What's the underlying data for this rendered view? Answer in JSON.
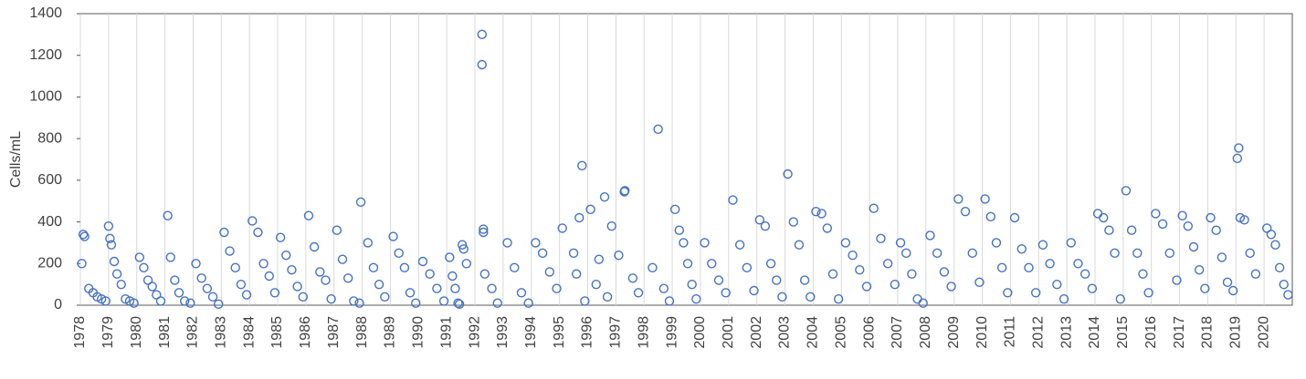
{
  "chart_data": {
    "type": "scatter",
    "ylabel": "Cells/mL",
    "xlim": [
      1978,
      2021
    ],
    "ylim": [
      0,
      1400
    ],
    "yticks": [
      0,
      200,
      400,
      600,
      800,
      1000,
      1200,
      1400
    ],
    "xticks": [
      1978,
      1979,
      1980,
      1981,
      1982,
      1983,
      1984,
      1985,
      1986,
      1987,
      1988,
      1989,
      1990,
      1991,
      1992,
      1993,
      1994,
      1995,
      1996,
      1997,
      1998,
      1999,
      2000,
      2001,
      2002,
      2003,
      2004,
      2005,
      2006,
      2007,
      2008,
      2009,
      2010,
      2011,
      2012,
      2013,
      2014,
      2015,
      2016,
      2017,
      2018,
      2019,
      2020
    ],
    "grid": true,
    "x": [
      1978.05,
      1978.1,
      1978.15,
      1978.3,
      1978.45,
      1978.6,
      1978.75,
      1978.9,
      1979.0,
      1979.05,
      1979.1,
      1979.2,
      1979.3,
      1979.45,
      1979.6,
      1979.75,
      1979.9,
      1980.1,
      1980.25,
      1980.4,
      1980.55,
      1980.7,
      1980.85,
      1981.1,
      1981.2,
      1981.35,
      1981.5,
      1981.7,
      1981.9,
      1982.1,
      1982.3,
      1982.5,
      1982.7,
      1982.9,
      1983.1,
      1983.3,
      1983.5,
      1983.7,
      1983.9,
      1984.1,
      1984.3,
      1984.5,
      1984.7,
      1984.9,
      1985.1,
      1985.3,
      1985.5,
      1985.7,
      1985.9,
      1986.1,
      1986.3,
      1986.5,
      1986.7,
      1986.9,
      1987.1,
      1987.3,
      1987.5,
      1987.7,
      1987.9,
      1987.95,
      1988.2,
      1988.4,
      1988.6,
      1988.8,
      1989.1,
      1989.3,
      1989.5,
      1989.7,
      1989.9,
      1990.15,
      1990.4,
      1990.65,
      1990.9,
      1991.1,
      1991.2,
      1991.3,
      1991.4,
      1991.45,
      1991.55,
      1991.6,
      1991.7,
      1992.25,
      1992.25,
      1992.3,
      1992.3,
      1992.35,
      1992.6,
      1992.8,
      1993.15,
      1993.4,
      1993.65,
      1993.9,
      1994.15,
      1994.4,
      1994.65,
      1994.9,
      1995.1,
      1995.7,
      1995.8,
      1995.5,
      1995.6,
      1995.9,
      1996.1,
      1996.6,
      1996.85,
      1996.4,
      1996.3,
      1996.7,
      1997.3,
      1997.32,
      1997.1,
      1997.6,
      1997.8,
      1998.5,
      1998.3,
      1998.7,
      1998.9,
      1999.1,
      1999.25,
      1999.4,
      1999.55,
      1999.7,
      1999.85,
      2000.15,
      2000.4,
      2000.65,
      2000.9,
      2001.15,
      2001.4,
      2001.65,
      2001.9,
      2002.1,
      2002.3,
      2002.5,
      2002.7,
      2002.9,
      2003.1,
      2003.3,
      2003.5,
      2003.7,
      2003.9,
      2004.1,
      2004.3,
      2004.5,
      2004.7,
      2004.9,
      2005.15,
      2005.4,
      2005.65,
      2005.9,
      2006.15,
      2006.4,
      2006.65,
      2006.9,
      2007.1,
      2007.3,
      2007.5,
      2007.7,
      2007.9,
      2008.15,
      2008.4,
      2008.65,
      2008.9,
      2009.15,
      2009.4,
      2009.65,
      2009.9,
      2010.1,
      2010.3,
      2010.5,
      2010.7,
      2010.9,
      2011.15,
      2011.4,
      2011.65,
      2011.9,
      2012.15,
      2012.4,
      2012.65,
      2012.9,
      2013.15,
      2013.4,
      2013.65,
      2013.9,
      2014.1,
      2014.3,
      2014.5,
      2014.7,
      2014.9,
      2015.1,
      2015.3,
      2015.5,
      2015.7,
      2015.9,
      2016.15,
      2016.4,
      2016.65,
      2016.9,
      2017.1,
      2017.3,
      2017.5,
      2017.7,
      2017.9,
      2018.1,
      2018.3,
      2018.5,
      2018.7,
      2018.9,
      2019.05,
      2019.1,
      2019.15,
      2019.3,
      2019.5,
      2019.7,
      2020.1,
      2020.25,
      2020.4,
      2020.55,
      2020.7,
      2020.85
    ],
    "series": [
      {
        "color": "#4472c4",
        "values": [
          200,
          340,
          330,
          80,
          60,
          40,
          30,
          20,
          380,
          320,
          290,
          210,
          150,
          100,
          30,
          20,
          10,
          230,
          180,
          120,
          90,
          50,
          20,
          430,
          230,
          120,
          60,
          20,
          10,
          200,
          130,
          80,
          40,
          5,
          350,
          260,
          180,
          100,
          50,
          405,
          350,
          200,
          140,
          60,
          325,
          240,
          170,
          90,
          40,
          430,
          280,
          160,
          120,
          30,
          360,
          220,
          130,
          20,
          10,
          495,
          300,
          180,
          100,
          40,
          330,
          250,
          180,
          60,
          10,
          210,
          150,
          80,
          20,
          230,
          140,
          80,
          10,
          5,
          290,
          270,
          200,
          1300,
          1155,
          365,
          350,
          150,
          80,
          10,
          300,
          180,
          60,
          10,
          300,
          250,
          160,
          80,
          370,
          420,
          670,
          250,
          150,
          20,
          460,
          520,
          380,
          220,
          100,
          40,
          545,
          550,
          240,
          130,
          60,
          845,
          180,
          80,
          20,
          460,
          360,
          300,
          200,
          100,
          30,
          300,
          200,
          120,
          60,
          505,
          290,
          180,
          70,
          410,
          380,
          200,
          120,
          40,
          630,
          400,
          290,
          120,
          40,
          450,
          440,
          370,
          150,
          30,
          300,
          240,
          170,
          90,
          465,
          320,
          200,
          100,
          300,
          250,
          150,
          30,
          10,
          335,
          250,
          160,
          90,
          510,
          450,
          250,
          110,
          510,
          425,
          300,
          180,
          60,
          420,
          270,
          180,
          60,
          290,
          200,
          100,
          30,
          300,
          200,
          150,
          80,
          440,
          420,
          360,
          250,
          30,
          550,
          360,
          250,
          150,
          60,
          440,
          390,
          250,
          120,
          430,
          380,
          280,
          170,
          80,
          420,
          360,
          230,
          110,
          70,
          705,
          755,
          420,
          410,
          250,
          150,
          370,
          340,
          290,
          180,
          100,
          50
        ]
      }
    ]
  }
}
